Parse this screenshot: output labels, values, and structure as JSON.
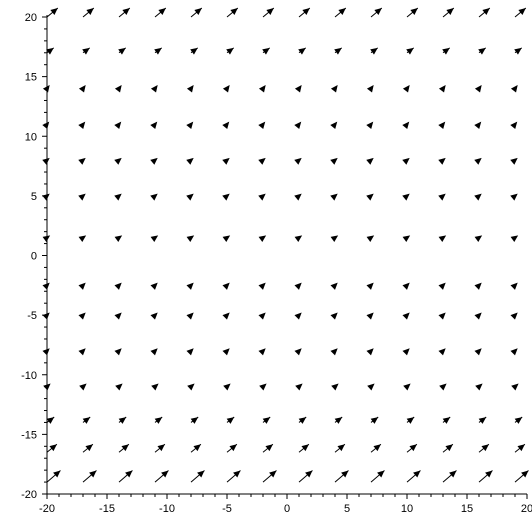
{
  "chart_data": {
    "type": "quiver",
    "title": "",
    "xlabel": "",
    "ylabel": "",
    "xlim": [
      -20,
      20
    ],
    "ylim": [
      -20,
      20
    ],
    "xticks": [
      -20,
      -15,
      -10,
      -5,
      0,
      5,
      10,
      15,
      20
    ],
    "yticks": [
      -20,
      -15,
      -10,
      -5,
      0,
      5,
      10,
      15,
      20
    ],
    "xtick_labels": [
      "-20",
      "-15",
      "-10",
      "-5",
      "0",
      "5",
      "10",
      "15",
      "20"
    ],
    "ytick_labels": [
      "-20",
      "-15",
      "-10",
      "-5",
      "0",
      "5",
      "10",
      "15",
      "20"
    ],
    "grid": false,
    "legend": "none",
    "arrow_color": "#000000",
    "x": [
      -20,
      -17,
      -14,
      -11,
      -8,
      -5,
      -2,
      1,
      4,
      7,
      10,
      13,
      16,
      19
    ],
    "rows": [
      {
        "y": 20,
        "u": 1.2,
        "v": 1.0
      },
      {
        "y": 17,
        "u": 0.75,
        "v": 0.55
      },
      {
        "y": 14,
        "u": 0.3,
        "v": 0.4
      },
      {
        "y": 11,
        "u": 0.25,
        "v": 0.3
      },
      {
        "y": 8,
        "u": 0.3,
        "v": 0.25
      },
      {
        "y": 5,
        "u": 0.3,
        "v": 0.25
      },
      {
        "y": 1.5,
        "u": 0.35,
        "v": 0.25
      },
      {
        "y": -2.5,
        "u": 0.3,
        "v": 0.3
      },
      {
        "y": -5,
        "u": 0.3,
        "v": 0.3
      },
      {
        "y": -8,
        "u": 0.3,
        "v": 0.3
      },
      {
        "y": -11,
        "u": 0.4,
        "v": 0.35
      },
      {
        "y": -14,
        "u": 0.8,
        "v": 0.6
      },
      {
        "y": -16.5,
        "u": 1.1,
        "v": 0.9
      },
      {
        "y": -19,
        "u": 1.5,
        "v": 1.3
      }
    ]
  }
}
